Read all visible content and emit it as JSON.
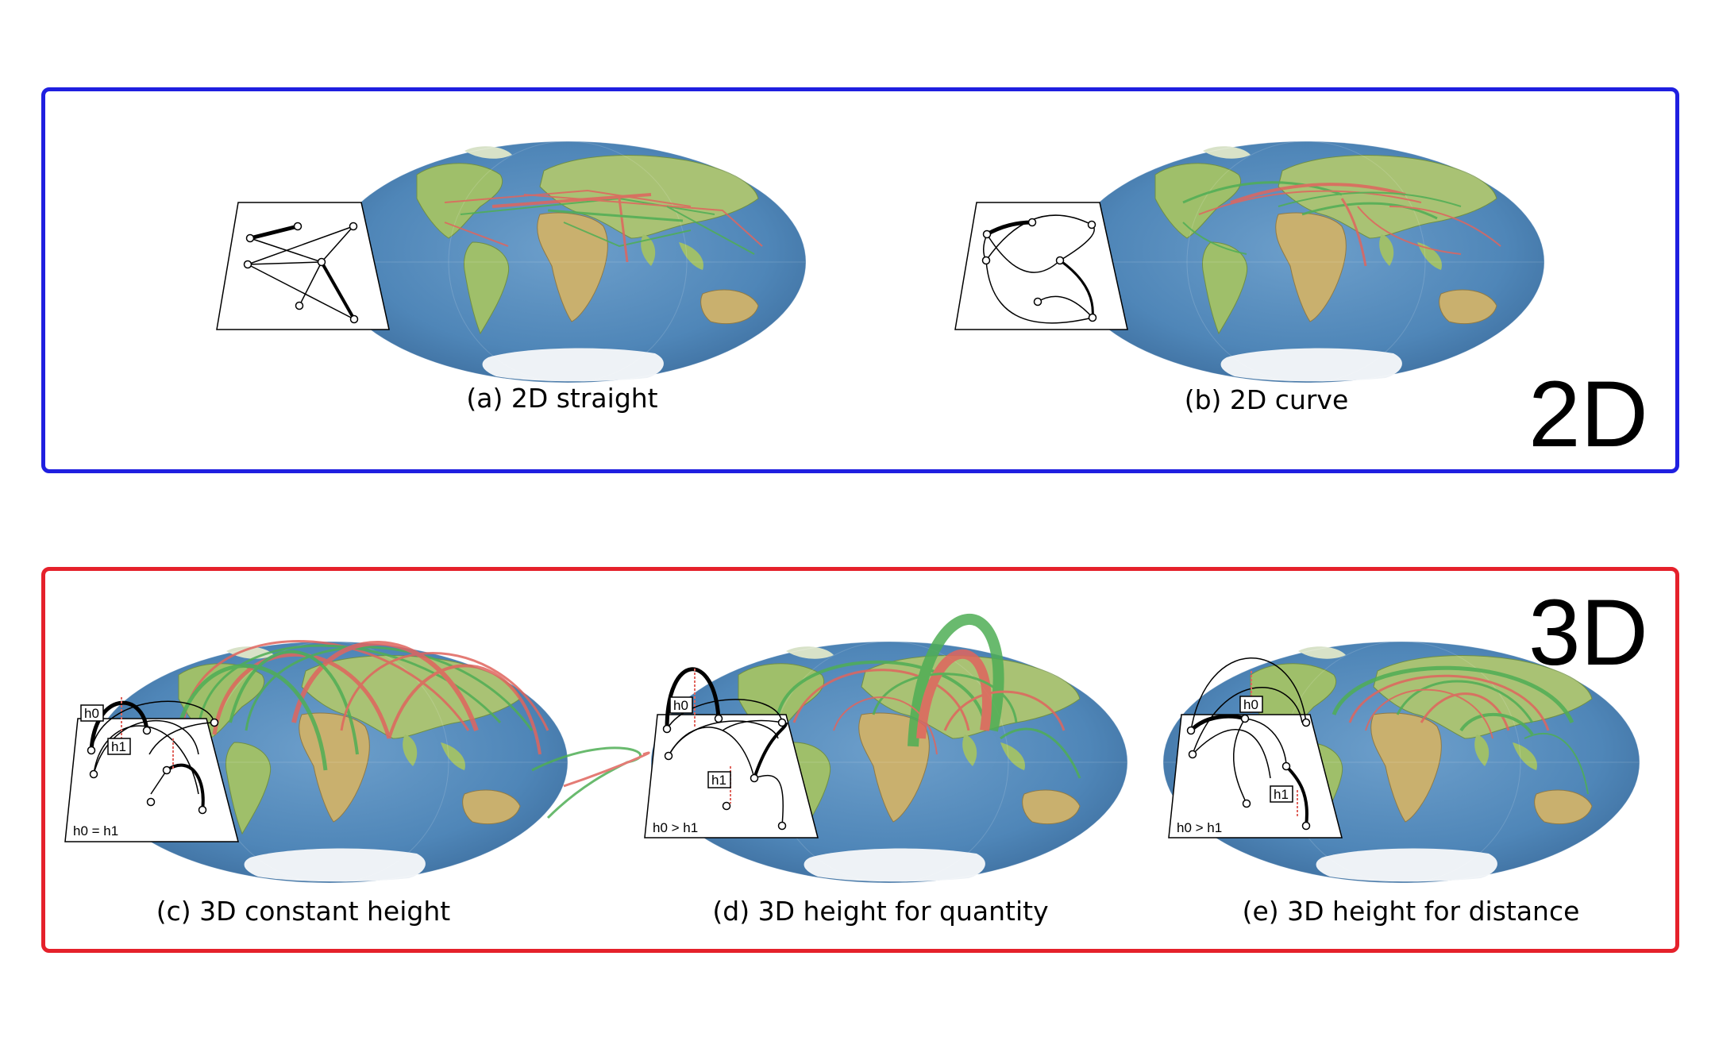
{
  "panels": {
    "two_d": {
      "label": "2D",
      "border_color": "#1f1fe0"
    },
    "three_d": {
      "label": "3D",
      "border_color": "#e5212b"
    }
  },
  "subfigures": [
    {
      "id": "a",
      "caption": "(a) 2D straight",
      "style": "2D straight"
    },
    {
      "id": "b",
      "caption": "(b) 2D curve",
      "style": "2D curve"
    },
    {
      "id": "c",
      "caption": "(c) 3D constant height",
      "style": "3D arcs",
      "inset_labels": {
        "h0": "h0",
        "h1": "h1",
        "relation": "h0 = h1"
      }
    },
    {
      "id": "d",
      "caption": "(d) 3D height for quantity",
      "style": "3D arcs",
      "inset_labels": {
        "h0": "h0",
        "h1": "h1",
        "relation": "h0 > h1"
      }
    },
    {
      "id": "e",
      "caption": "(e) 3D height for distance",
      "style": "3D arcs",
      "inset_labels": {
        "h0": "h0",
        "h1": "h1",
        "relation": "h0 > h1"
      }
    }
  ],
  "colors": {
    "flow_green": "#4fae55",
    "flow_red": "#e0655e",
    "ocean": "#4f86b8",
    "land": "#9fbf6a",
    "ice": "#eef2f6"
  }
}
